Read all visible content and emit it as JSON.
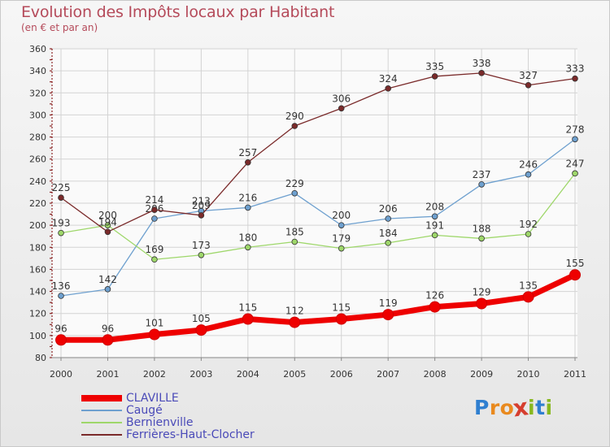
{
  "header": {
    "title": "Evolution des Impôts locaux par Habitant",
    "subtitle": "(en € et par an)"
  },
  "colors": {
    "title": "#b54a5a",
    "legend_text": "#4a4ab8",
    "grid": "#d3d3d3",
    "axis": "#7a0000"
  },
  "logo": {
    "text": "Proxiti",
    "letter_colors": [
      "#2f7fd0",
      "#e98a1f",
      "#e98a1f",
      "#d63e2f",
      "#88b81f",
      "#2f7fd0",
      "#88b81f"
    ]
  },
  "chart_data": {
    "type": "line",
    "title": "Evolution des Impôts locaux par Habitant",
    "subtitle": "(en € et par an)",
    "x": [
      "2000",
      "2001",
      "2002",
      "2003",
      "2004",
      "2005",
      "2006",
      "2007",
      "2008",
      "2009",
      "2010",
      "2011"
    ],
    "ylim": [
      80,
      360
    ],
    "yticks": [
      80,
      100,
      120,
      140,
      160,
      180,
      200,
      220,
      240,
      260,
      280,
      300,
      320,
      340,
      360
    ],
    "grid": true,
    "legend_position": "bottom-left",
    "series": [
      {
        "name": "CLAVILLE",
        "color": "#ee0000",
        "width": "thick",
        "values": [
          96,
          96,
          101,
          105,
          115,
          112,
          115,
          119,
          126,
          129,
          135,
          155
        ],
        "labels": [
          "96",
          "96",
          "101",
          "105",
          "115",
          "112",
          "115",
          "119",
          "126",
          "129",
          "135",
          "155"
        ]
      },
      {
        "name": "Caugé",
        "color": "#6ea0cf",
        "width": "thin",
        "values": [
          136,
          142,
          206,
          213,
          216,
          229,
          200,
          206,
          208,
          237,
          246,
          278
        ],
        "labels": [
          "136",
          "142",
          "206",
          "213",
          "216",
          "229",
          "200",
          "206",
          "208",
          "237",
          "246",
          "278"
        ]
      },
      {
        "name": "Bernienville",
        "color": "#9ed76a",
        "width": "thin",
        "values": [
          193,
          200,
          169,
          173,
          180,
          185,
          179,
          184,
          191,
          188,
          192,
          247
        ],
        "labels": [
          "193",
          "200",
          "169",
          "173",
          "180",
          "185",
          "179",
          "184",
          "191",
          "188",
          "192",
          "247"
        ]
      },
      {
        "name": "Ferrières-Haut-Clocher",
        "color": "#7a2a2a",
        "width": "thin",
        "values": [
          225,
          194,
          214,
          209,
          257,
          290,
          306,
          324,
          335,
          338,
          327,
          333
        ],
        "labels": [
          "225",
          "194",
          "214",
          "209",
          "257",
          "290",
          "306",
          "324",
          "335",
          "338",
          "327",
          "333"
        ]
      }
    ]
  }
}
